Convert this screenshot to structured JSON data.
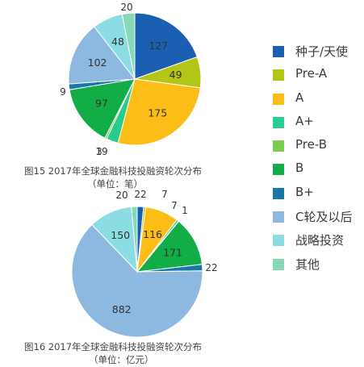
{
  "legend": [
    {
      "label": "种子/天使",
      "color": "#1a5fb1"
    },
    {
      "label": "Pre-A",
      "color": "#b3c515"
    },
    {
      "label": "A",
      "color": "#fbbd16"
    },
    {
      "label": "A+",
      "color": "#28cc8e"
    },
    {
      "label": "Pre-B",
      "color": "#7ccb53"
    },
    {
      "label": "B",
      "color": "#13ad48"
    },
    {
      "label": "B+",
      "color": "#1777a6"
    },
    {
      "label": "C轮及以后",
      "color": "#8db8e0"
    },
    {
      "label": "战略投资",
      "color": "#8cdce3"
    },
    {
      "label": "其他",
      "color": "#86d9b7"
    }
  ],
  "chart_data": [
    {
      "type": "pie",
      "title": "图15   2017年全球金融科技投融资轮次分布",
      "subtitle": "（单位：笔）",
      "categories": [
        "种子/天使",
        "Pre-A",
        "A",
        "A+",
        "Pre-B",
        "B",
        "B+",
        "C轮及以后",
        "战略投资",
        "其他"
      ],
      "values": [
        127,
        49,
        175,
        19,
        3,
        97,
        9,
        102,
        48,
        20
      ],
      "start_angle_deg": 0,
      "direction": "clockwise",
      "data_labels": true
    },
    {
      "type": "pie",
      "title": "图16   2017年全球金融科技投融资轮次分布",
      "subtitle": "（单位：亿元）",
      "categories": [
        "种子/天使",
        "Pre-A",
        "A",
        "A+",
        "Pre-B",
        "B",
        "B+",
        "C轮及以后",
        "战略投资",
        "其他"
      ],
      "values": [
        22,
        7,
        116,
        7,
        1,
        171,
        22,
        882,
        150,
        20
      ],
      "start_angle_deg": 0,
      "direction": "clockwise",
      "data_labels": true
    }
  ]
}
